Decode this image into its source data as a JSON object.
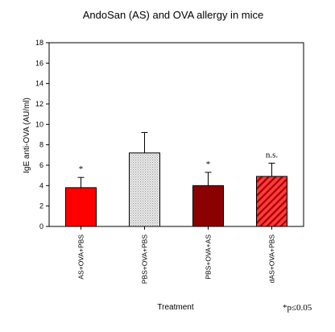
{
  "chart_data": {
    "type": "bar",
    "title": "AndoSan (AS) and OVA allergy in mice",
    "xlabel": "Treatment",
    "ylabel": "IgE anti-OVA (AU/ml)",
    "ylim": [
      0,
      18
    ],
    "yticks": [
      0,
      2,
      4,
      6,
      8,
      10,
      12,
      14,
      16,
      18
    ],
    "grid": false,
    "categories": [
      "AS+OVA+PBS",
      "PBS+OVA+PBS",
      "PBS+OVA+AS",
      "dAS+OVA+PBS"
    ],
    "values": [
      3.8,
      7.2,
      4.0,
      4.9
    ],
    "errors": [
      1.0,
      2.0,
      1.3,
      1.3
    ],
    "annotations": [
      "*",
      "",
      "*",
      "n.s."
    ],
    "colors": [
      "#ff0000",
      "#d4d4d4",
      "#8b0000",
      "#ff1a1a"
    ],
    "patterns": [
      "solid",
      "dotted",
      "solid",
      "hatched"
    ],
    "footnote": "*p≤0.05"
  }
}
